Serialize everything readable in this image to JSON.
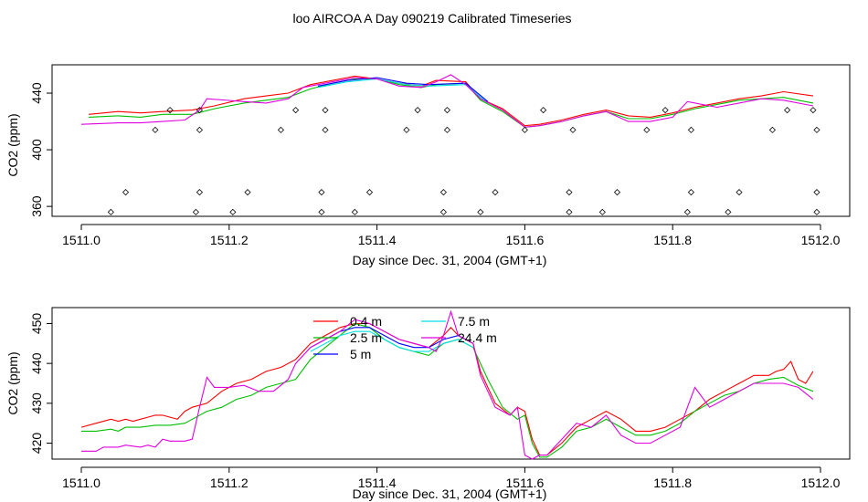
{
  "title": "loo AIRCOA A  Day 090219  Calibrated Timeseries",
  "colors": {
    "red": "#ff0000",
    "green": "#00c000",
    "blue": "#0000ff",
    "cyan": "#00e0e0",
    "magenta": "#e000e0"
  },
  "chart_data": [
    {
      "type": "line",
      "xlabel": "Day since Dec. 31, 2004 (GMT+1)",
      "ylabel": "CO2 (ppm)",
      "xlim": [
        1511.0,
        1512.0
      ],
      "ylim": [
        353,
        460
      ],
      "xticks": [
        "1511.0",
        "1511.2",
        "1511.4",
        "1511.6",
        "1511.8",
        "1512.0"
      ],
      "yticks": [
        "360",
        "400",
        "440"
      ],
      "legend": "none",
      "series": [
        {
          "color": "#ff0000",
          "x": [
            1511.01,
            1511.05,
            1511.08,
            1511.11,
            1511.15,
            1511.18,
            1511.22,
            1511.25,
            1511.28,
            1511.31,
            1511.34,
            1511.37,
            1511.4,
            1511.43,
            1511.46,
            1511.48,
            1511.52,
            1511.54,
            1511.57,
            1511.6,
            1511.62,
            1511.65,
            1511.68,
            1511.71,
            1511.74,
            1511.77,
            1511.8,
            1511.83,
            1511.86,
            1511.89,
            1511.92,
            1511.95,
            1511.99
          ],
          "y": [
            425,
            427,
            426,
            427,
            428,
            431,
            436,
            438,
            440,
            446,
            449,
            452,
            450,
            447,
            445,
            449,
            448,
            436,
            429,
            417,
            418,
            421,
            425,
            428,
            424,
            423,
            426,
            430,
            433,
            436,
            438,
            441,
            438
          ]
        },
        {
          "color": "#00c000",
          "x": [
            1511.01,
            1511.05,
            1511.08,
            1511.11,
            1511.15,
            1511.18,
            1511.22,
            1511.25,
            1511.28,
            1511.31,
            1511.34,
            1511.37,
            1511.4,
            1511.43,
            1511.46,
            1511.48,
            1511.52,
            1511.54,
            1511.57,
            1511.6,
            1511.62,
            1511.65,
            1511.68,
            1511.71,
            1511.74,
            1511.77,
            1511.8,
            1511.83,
            1511.86,
            1511.89,
            1511.92,
            1511.95,
            1511.99
          ],
          "y": [
            423,
            424,
            423,
            425,
            425,
            429,
            433,
            435,
            437,
            443,
            447,
            450,
            450,
            446,
            444,
            446,
            447,
            435,
            427,
            416,
            417,
            420,
            424,
            427,
            422,
            422,
            425,
            429,
            432,
            435,
            436,
            437,
            433
          ]
        },
        {
          "color": "#0000ff",
          "x": [
            1511.32,
            1511.36,
            1511.4,
            1511.44,
            1511.47,
            1511.52,
            1511.55
          ],
          "y": [
            445,
            449,
            451,
            447,
            446,
            447,
            434
          ]
        },
        {
          "color": "#00e0e0",
          "x": [
            1511.32,
            1511.36,
            1511.4,
            1511.44,
            1511.47,
            1511.52,
            1511.55
          ],
          "y": [
            444,
            448,
            450,
            446,
            445,
            446,
            433
          ]
        },
        {
          "color": "#e000e0",
          "x": [
            1511.0,
            1511.05,
            1511.08,
            1511.11,
            1511.14,
            1511.16,
            1511.17,
            1511.22,
            1511.25,
            1511.28,
            1511.3,
            1511.34,
            1511.37,
            1511.4,
            1511.43,
            1511.46,
            1511.48,
            1511.5,
            1511.52,
            1511.54,
            1511.57,
            1511.6,
            1511.62,
            1511.65,
            1511.68,
            1511.71,
            1511.74,
            1511.77,
            1511.8,
            1511.82,
            1511.86,
            1511.89,
            1511.92,
            1511.95,
            1511.99
          ],
          "y": [
            418,
            419,
            419,
            420,
            421,
            428,
            436,
            434,
            433,
            436,
            444,
            448,
            451,
            450,
            445,
            444,
            448,
            453,
            446,
            436,
            428,
            416,
            417,
            420,
            424,
            427,
            420,
            420,
            423,
            434,
            430,
            433,
            436,
            435,
            431
          ]
        }
      ],
      "markers": {
        "symbol": "open-diamond",
        "x": [
          1511.04,
          1511.06,
          1511.1,
          1511.12,
          1511.155,
          1511.16,
          1511.16,
          1511.16,
          1511.205,
          1511.225,
          1511.27,
          1511.29,
          1511.325,
          1511.325,
          1511.33,
          1511.33,
          1511.37,
          1511.39,
          1511.44,
          1511.455,
          1511.49,
          1511.49,
          1511.495,
          1511.495,
          1511.54,
          1511.56,
          1511.6,
          1511.625,
          1511.66,
          1511.66,
          1511.665,
          1511.705,
          1511.725,
          1511.765,
          1511.79,
          1511.82,
          1511.825,
          1511.825,
          1511.875,
          1511.89,
          1511.935,
          1511.955,
          1511.99,
          1511.995,
          1511.995,
          1511.995
        ],
        "y": [
          356,
          370,
          414,
          428,
          356,
          370,
          414,
          428,
          356,
          370,
          414,
          428,
          356,
          370,
          414,
          428,
          356,
          370,
          414,
          428,
          356,
          370,
          414,
          428,
          356,
          370,
          414,
          428,
          356,
          370,
          414,
          356,
          370,
          414,
          428,
          356,
          370,
          414,
          356,
          370,
          414,
          428,
          428,
          414,
          370,
          356
        ]
      }
    },
    {
      "type": "line",
      "xlabel": "Day since Dec. 31, 2004 (GMT+1)",
      "ylabel": "CO2 (ppm)",
      "xlim": [
        1511.0,
        1512.0
      ],
      "ylim": [
        416,
        454
      ],
      "xticks": [
        "1511.0",
        "1511.2",
        "1511.4",
        "1511.6",
        "1511.8",
        "1512.0"
      ],
      "yticks": [
        "420",
        "430",
        "440",
        "450"
      ],
      "legend": "top-center",
      "series": [
        {
          "name": "0.4 m",
          "color": "#ff0000",
          "x": [
            1511.0,
            1511.02,
            1511.04,
            1511.05,
            1511.06,
            1511.07,
            1511.08,
            1511.09,
            1511.1,
            1511.11,
            1511.12,
            1511.13,
            1511.14,
            1511.15,
            1511.17,
            1511.19,
            1511.21,
            1511.23,
            1511.25,
            1511.27,
            1511.29,
            1511.31,
            1511.33,
            1511.35,
            1511.37,
            1511.39,
            1511.41,
            1511.43,
            1511.45,
            1511.47,
            1511.49,
            1511.5,
            1511.51,
            1511.52,
            1511.53,
            1511.54,
            1511.55,
            1511.56,
            1511.58,
            1511.59,
            1511.6,
            1511.61,
            1511.62,
            1511.63,
            1511.65,
            1511.67,
            1511.69,
            1511.71,
            1511.73,
            1511.75,
            1511.77,
            1511.79,
            1511.81,
            1511.83,
            1511.85,
            1511.87,
            1511.89,
            1511.91,
            1511.93,
            1511.94,
            1511.95,
            1511.96,
            1511.97,
            1511.98,
            1511.99
          ],
          "y": [
            424,
            425,
            426,
            425.5,
            426,
            425.5,
            426,
            426.5,
            427,
            427,
            426.5,
            426,
            428,
            429,
            430,
            433,
            435,
            436,
            438,
            439,
            441,
            445,
            447,
            449,
            450,
            450,
            448,
            446,
            445,
            444,
            447,
            449,
            447,
            446,
            445,
            438,
            434,
            430,
            427,
            429,
            428,
            421,
            417,
            417,
            420,
            424,
            426,
            428,
            426,
            423,
            423,
            424,
            426,
            428,
            431,
            433,
            435,
            437,
            437,
            438,
            438.5,
            440.5,
            436,
            435,
            438
          ]
        },
        {
          "name": "2.5 m",
          "color": "#00c000",
          "x": [
            1511.0,
            1511.02,
            1511.04,
            1511.05,
            1511.06,
            1511.08,
            1511.1,
            1511.12,
            1511.14,
            1511.15,
            1511.17,
            1511.19,
            1511.21,
            1511.23,
            1511.25,
            1511.27,
            1511.29,
            1511.31,
            1511.33,
            1511.35,
            1511.37,
            1511.39,
            1511.41,
            1511.43,
            1511.45,
            1511.47,
            1511.49,
            1511.51,
            1511.53,
            1511.55,
            1511.57,
            1511.59,
            1511.6,
            1511.61,
            1511.62,
            1511.63,
            1511.65,
            1511.67,
            1511.69,
            1511.71,
            1511.73,
            1511.75,
            1511.77,
            1511.79,
            1511.81,
            1511.83,
            1511.85,
            1511.87,
            1511.89,
            1511.91,
            1511.93,
            1511.95,
            1511.97,
            1511.99
          ],
          "y": [
            423,
            423,
            423.5,
            423,
            424,
            424,
            424.5,
            424.5,
            425,
            426,
            428,
            429,
            431,
            432,
            434,
            435,
            436,
            441,
            444,
            447,
            450,
            449,
            446,
            444,
            443,
            442,
            445,
            446,
            444,
            436,
            429,
            426,
            427,
            420,
            416.5,
            416.5,
            419,
            423,
            424,
            426,
            424,
            422,
            422,
            423,
            425,
            428,
            430,
            432,
            433,
            435,
            436,
            436.5,
            434.5,
            433
          ]
        },
        {
          "name": "5 m",
          "color": "#0000ff",
          "x": [
            1511.31,
            1511.33,
            1511.35,
            1511.37,
            1511.39,
            1511.41,
            1511.43,
            1511.45,
            1511.47,
            1511.49,
            1511.51,
            1511.53
          ],
          "y": [
            444,
            446,
            448,
            449,
            449,
            447,
            445,
            444,
            444,
            446,
            447,
            445
          ]
        },
        {
          "name": "7.5 m",
          "color": "#00e0e0",
          "x": [
            1511.31,
            1511.33,
            1511.35,
            1511.37,
            1511.39,
            1511.41,
            1511.43,
            1511.45,
            1511.47,
            1511.49,
            1511.51,
            1511.53
          ],
          "y": [
            443,
            445,
            447,
            448,
            448,
            446,
            444,
            443,
            443,
            445,
            446,
            444
          ]
        },
        {
          "name": "24.4 m",
          "color": "#e000e0",
          "x": [
            1511.0,
            1511.02,
            1511.03,
            1511.05,
            1511.06,
            1511.08,
            1511.09,
            1511.1,
            1511.11,
            1511.12,
            1511.13,
            1511.14,
            1511.15,
            1511.16,
            1511.17,
            1511.18,
            1511.2,
            1511.22,
            1511.24,
            1511.26,
            1511.28,
            1511.29,
            1511.31,
            1511.33,
            1511.35,
            1511.37,
            1511.39,
            1511.41,
            1511.43,
            1511.45,
            1511.47,
            1511.48,
            1511.49,
            1511.5,
            1511.51,
            1511.52,
            1511.53,
            1511.54,
            1511.55,
            1511.56,
            1511.58,
            1511.59,
            1511.6,
            1511.61,
            1511.62,
            1511.63,
            1511.65,
            1511.67,
            1511.69,
            1511.71,
            1511.73,
            1511.75,
            1511.77,
            1511.79,
            1511.81,
            1511.82,
            1511.83,
            1511.85,
            1511.87,
            1511.89,
            1511.91,
            1511.93,
            1511.95,
            1511.97,
            1511.99
          ],
          "y": [
            418,
            418,
            419,
            419,
            419.5,
            419,
            419.5,
            419,
            421,
            420.5,
            420.5,
            420.5,
            421,
            429,
            436.5,
            434,
            434,
            434.5,
            433,
            433,
            436,
            440,
            444,
            446,
            448,
            451,
            450,
            448,
            446,
            445,
            444,
            443,
            447,
            453,
            447,
            446,
            445,
            437,
            433,
            429,
            427,
            429,
            417,
            416,
            417,
            417,
            421,
            425,
            424,
            427,
            422,
            420,
            420,
            422,
            424,
            429,
            434,
            429,
            431,
            433,
            435,
            435,
            435,
            434,
            431
          ]
        }
      ]
    }
  ]
}
